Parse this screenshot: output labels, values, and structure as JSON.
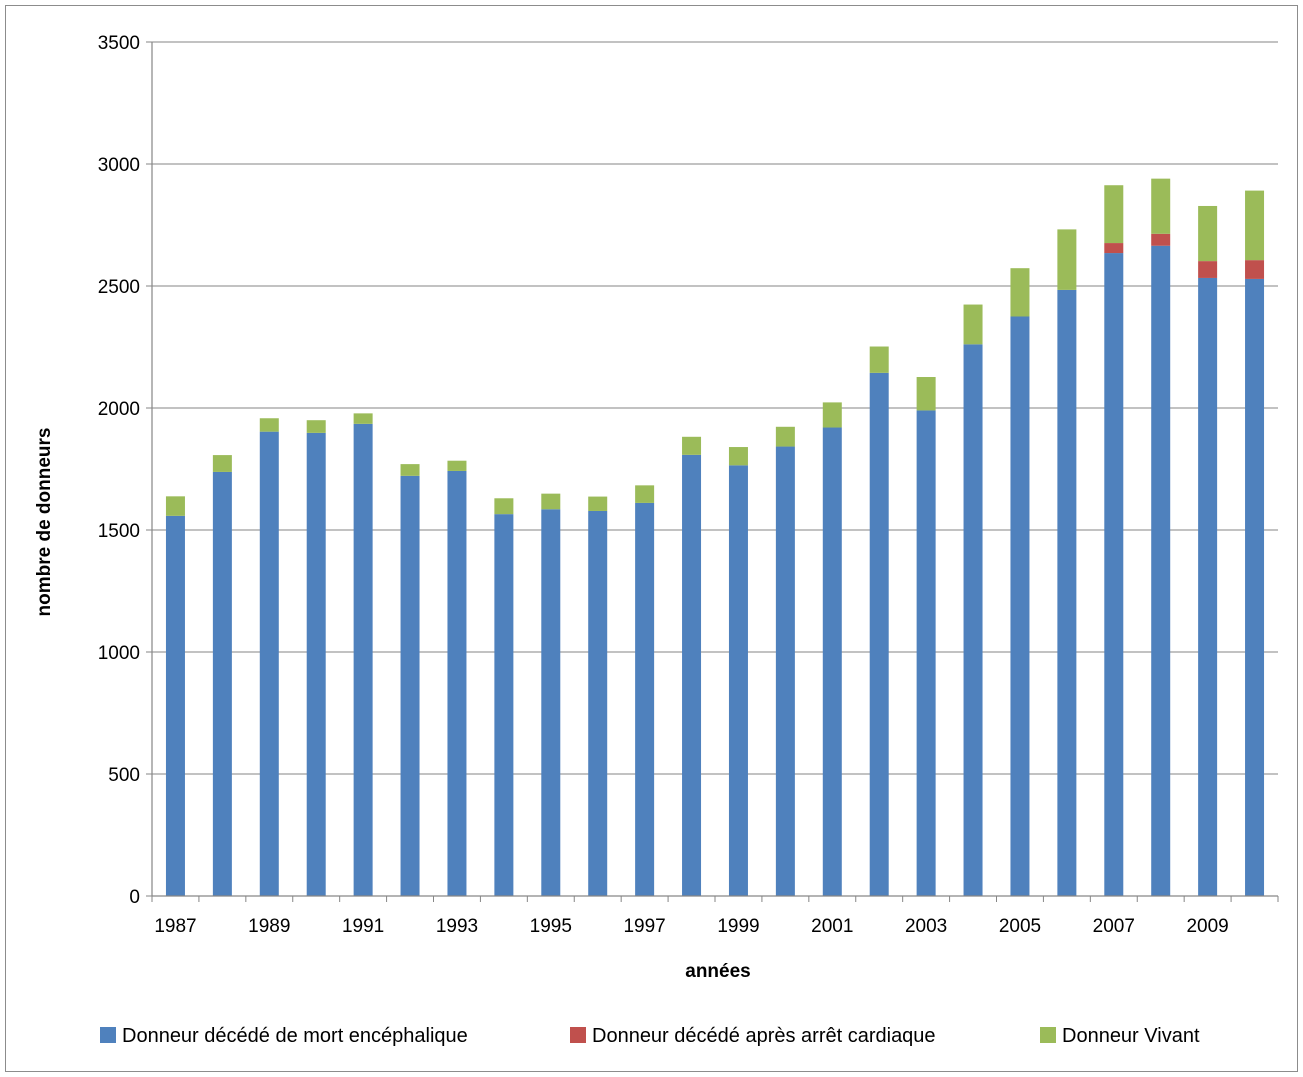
{
  "chart_data": {
    "type": "bar",
    "stacked": true,
    "title": "",
    "xlabel": "années",
    "ylabel": "nombre de donneurs",
    "ylim": [
      0,
      3500
    ],
    "yticks": [
      0,
      500,
      1000,
      1500,
      2000,
      2500,
      3000,
      3500
    ],
    "categories": [
      "1987",
      "1988",
      "1989",
      "1990",
      "1991",
      "1992",
      "1993",
      "1994",
      "1995",
      "1996",
      "1997",
      "1998",
      "1999",
      "2000",
      "2001",
      "2002",
      "2003",
      "2004",
      "2005",
      "2006",
      "2007",
      "2008",
      "2009",
      "2010"
    ],
    "xtick_labels": [
      "1987",
      "",
      "1989",
      "",
      "1991",
      "",
      "1993",
      "",
      "1995",
      "",
      "1997",
      "",
      "1999",
      "",
      "2001",
      "",
      "2003",
      "",
      "2005",
      "",
      "2007",
      "",
      "2009",
      ""
    ],
    "grid": true,
    "legend_position": "bottom",
    "series": [
      {
        "name": "Donneur décédé de mort encéphalique",
        "color": "#4f81bd",
        "values": [
          1558,
          1738,
          1903,
          1898,
          1935,
          1722,
          1742,
          1565,
          1585,
          1578,
          1611,
          1808,
          1765,
          1842,
          1920,
          2144,
          1990,
          2261,
          2375,
          2484,
          2635,
          2665,
          2533,
          2529
        ]
      },
      {
        "name": "Donneur décédé après arrêt cardiaque",
        "color": "#c0504d",
        "values": [
          0,
          0,
          0,
          0,
          0,
          0,
          0,
          0,
          0,
          0,
          0,
          0,
          0,
          0,
          0,
          0,
          0,
          0,
          0,
          0,
          41,
          49,
          69,
          77
        ]
      },
      {
        "name": "Donneur Vivant",
        "color": "#9bbb59",
        "values": [
          80,
          69,
          55,
          52,
          43,
          48,
          42,
          65,
          64,
          59,
          72,
          74,
          75,
          81,
          103,
          108,
          137,
          163,
          198,
          248,
          237,
          226,
          226,
          285
        ]
      }
    ]
  }
}
